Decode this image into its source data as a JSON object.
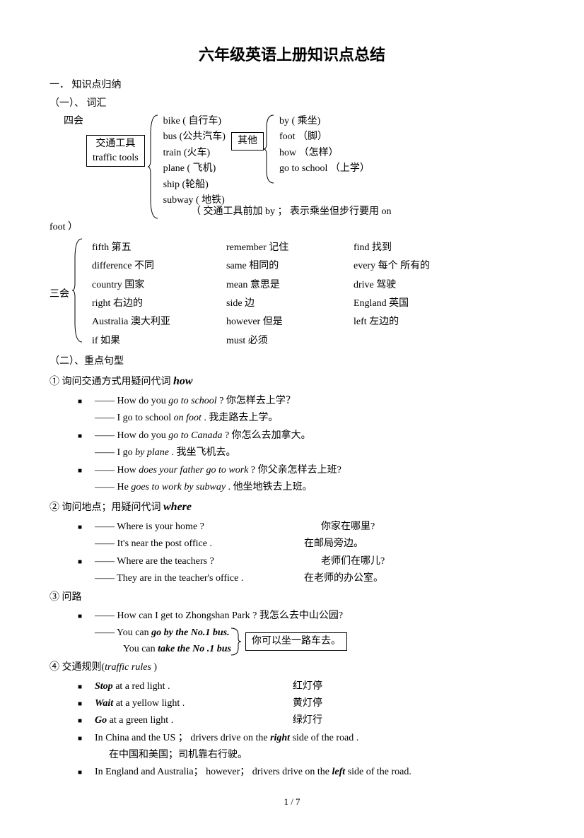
{
  "title": "六年级英语上册知识点总结",
  "h1": "一．  知识点归纳",
  "h1_1": "（一）、  词汇",
  "label_sihui": "四会",
  "box_traffic_tools": "交通工具\ntraffic tools",
  "traffic_vocab": [
    "bike ( 自行车)",
    "bus  (公共汽车)",
    "train (火车)",
    "plane  ( 飞机)",
    "ship   (轮船)",
    "subway  ( 地铁)"
  ],
  "box_other": "其他",
  "other_vocab": [
    "by  ( 乘坐)",
    "foot  （脚）",
    "how  （怎样）",
    "go to school  （上学）"
  ],
  "note_by": "（ 交通工具前加 by ；  表示乘坐但步行要用 on",
  "note_foot": "foot  ）",
  "label_sanhui": "三会",
  "sanhui_rows": [
    [
      "fifth     第五",
      "remember 记住",
      "find 找到"
    ],
    [
      "difference 不同",
      "same 相同的",
      "every   每个 所有的"
    ],
    [
      "country 国家",
      "mean 意思是",
      "drive 驾驶"
    ],
    [
      "right 右边的",
      "side    边",
      "England    英国"
    ],
    [
      "Australia    澳大利亚",
      "however    但是",
      "left 左边的"
    ],
    [
      "if   如果",
      "must 必须",
      ""
    ]
  ],
  "h1_2": "（二）、重点句型",
  "pt1_label": "①  询问交通方式用疑问代词 ",
  "pt1_kw": "how",
  "pt1_items": [
    {
      "q": "—— How do you  <i>go to school</i> ?  你怎样去上学？",
      "a": "—— I go to school <i>on foot</i> .          我走路去上学。"
    },
    {
      "q": "—— How do you <i>go to Canada</i> ?   你怎么去加拿大。",
      "a": "——  I go <i>by plane</i> .                     我坐飞机去。"
    },
    {
      "q": "—— How <i>does  your father go to work</i> ?      你父亲怎样去上班?",
      "a": "——  He <i>goes to work by subway</i> .             他坐地铁去上班。"
    }
  ],
  "pt2_label": "②  询问地点；用疑问代词 ",
  "pt2_kw": "where",
  "pt2_items": [
    {
      "q": "——  Where is your  home ?",
      "qr": "你家在哪里?",
      "a": "——  It's  near the post office .",
      "ar": "在邮局旁边。"
    },
    {
      "q": "——   Where are  the teachers ?",
      "qr": "老师们在哪儿?",
      "a": "——    They are in the teacher's office .",
      "ar": "在老师的办公室。"
    }
  ],
  "pt3_label": "③   问路",
  "pt3_q": "——    How  can  I  get  to  Zhongshan  Park  ?       我怎么去中山公园?",
  "pt3_a1": "——    You can ",
  "pt3_a1b": "go by the No.1 bus.",
  "pt3_a2": "You can  ",
  "pt3_a2b": "take the No .1 bus",
  "pt3_box": "你可以坐一路车去。",
  "pt4_label": "④   交通规则(",
  "pt4_ital": "traffic rules",
  "pt4_close": " )",
  "pt4_items": [
    {
      "b": "Stop",
      "t": "  at a red light .",
      "r": "红灯停"
    },
    {
      "b": "Wait",
      "t": "  at a yellow light .",
      "r": "黄灯停"
    },
    {
      "b": "Go",
      "t": " at   a  green light .",
      "r": "绿灯行"
    }
  ],
  "pt4_long1a": "In China and the US ；  drivers drive on the ",
  "pt4_long1b": "right",
  "pt4_long1c": " side of  the road .",
  "pt4_long1_cn": "在中国和美国；司机靠右行驶。",
  "pt4_long2a": "In England and Australia；  however；  drivers drive on the ",
  "pt4_long2b": "left",
  "pt4_long2c": " side of the road.",
  "footer": "1 / 7"
}
